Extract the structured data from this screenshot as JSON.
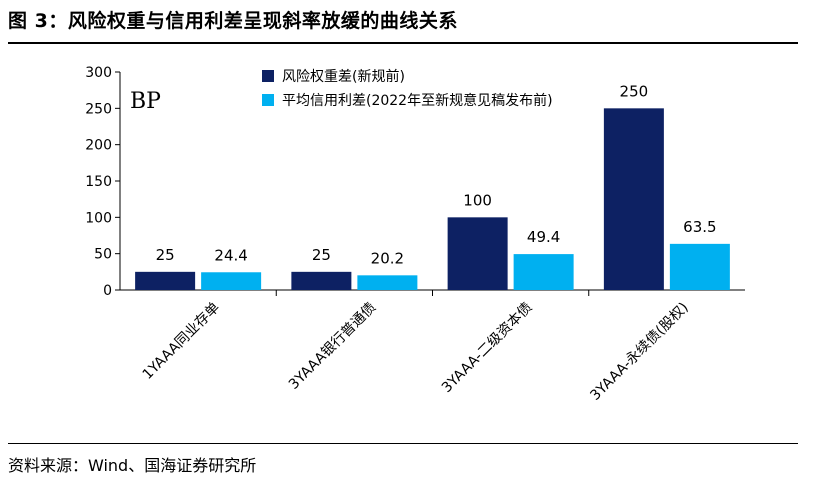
{
  "figure": {
    "title": "图 3：风险权重与信用利差呈现斜率放缓的曲线关系",
    "source": "资料来源：Wind、国海证券研究所"
  },
  "chart_data": {
    "type": "bar",
    "unit_label": "BP",
    "categories": [
      "1YAAA同业存单",
      "3YAAA银行普通债",
      "3YAAA-二级资本债",
      "3YAAA-永续债(股权)"
    ],
    "series": [
      {
        "name": "风险权重差(新规前)",
        "color": "#0d2163",
        "values": [
          25,
          25,
          100,
          250
        ]
      },
      {
        "name": "平均信用利差(2022年至新规意见稿发布前)",
        "color": "#00b0f0",
        "values": [
          24.4,
          20.2,
          49.4,
          63.5
        ]
      }
    ],
    "data_labels": [
      [
        "25",
        "25",
        "100",
        "250"
      ],
      [
        "24.4",
        "20.2",
        "49.4",
        "63.5"
      ]
    ],
    "ylim": [
      0,
      300
    ],
    "yticks": [
      0,
      50,
      100,
      150,
      200,
      250,
      300
    ],
    "grid": false,
    "legend_position": "top-center"
  }
}
